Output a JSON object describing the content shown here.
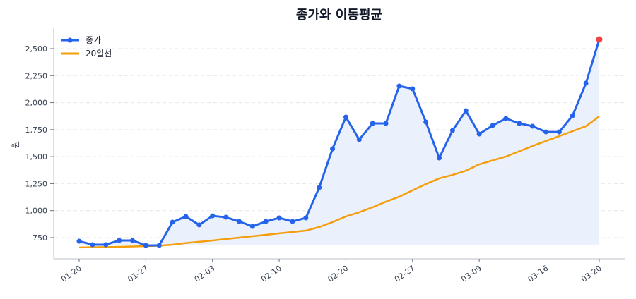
{
  "chart_data": {
    "type": "line",
    "title": "종가와 이동평균",
    "xlabel": "",
    "ylabel": "원",
    "ylim": [
      570,
      2680
    ],
    "yticks": [
      750,
      1000,
      1250,
      1500,
      1750,
      2000,
      2250,
      2500
    ],
    "ytick_labels": [
      "750",
      "1,000",
      "1,250",
      "1,500",
      "1,750",
      "2,000",
      "2,250",
      "2,500"
    ],
    "xtick_indices": [
      0,
      5,
      10,
      15,
      20,
      25,
      30,
      35,
      39
    ],
    "xtick_labels": [
      "01-20",
      "01-27",
      "02-03",
      "02-10",
      "02-20",
      "02-27",
      "03-09",
      "03-16",
      "03-20"
    ],
    "grid": "y-dashed",
    "legend_position": "upper left",
    "series": [
      {
        "name": "종가",
        "color": "#2563eb",
        "marker": "circle",
        "fill": true,
        "fill_color": "#eaf0fc",
        "last_point_color": "#ef4444",
        "values": [
          717,
          685,
          685,
          724,
          724,
          678,
          678,
          894,
          946,
          868,
          952,
          939,
          900,
          854,
          900,
          933,
          900,
          933,
          1214,
          1573,
          1867,
          1658,
          1808,
          1808,
          2154,
          2128,
          1821,
          1488,
          1743,
          1925,
          1710,
          1788,
          1854,
          1808,
          1782,
          1729,
          1729,
          1880,
          2180,
          2585
        ]
      },
      {
        "name": "20일선",
        "color": "#f59e0b",
        "marker": "none",
        "values": [
          659,
          661,
          663,
          665,
          668,
          672,
          676,
          685,
          700,
          712,
          724,
          737,
          750,
          763,
          776,
          790,
          802,
          815,
          848,
          894,
          946,
          985,
          1031,
          1083,
          1129,
          1188,
          1246,
          1299,
          1331,
          1370,
          1429,
          1465,
          1501,
          1550,
          1599,
          1645,
          1690,
          1736,
          1782,
          1873
        ]
      }
    ]
  },
  "legend": {
    "items": [
      {
        "label": "종가",
        "color": "#2563eb"
      },
      {
        "label": "20일선",
        "color": "#f59e0b"
      }
    ]
  },
  "colors": {
    "axis": "#d1d5db",
    "grid": "#e5e7eb",
    "tick_text": "#374151",
    "title_text": "#111827"
  }
}
